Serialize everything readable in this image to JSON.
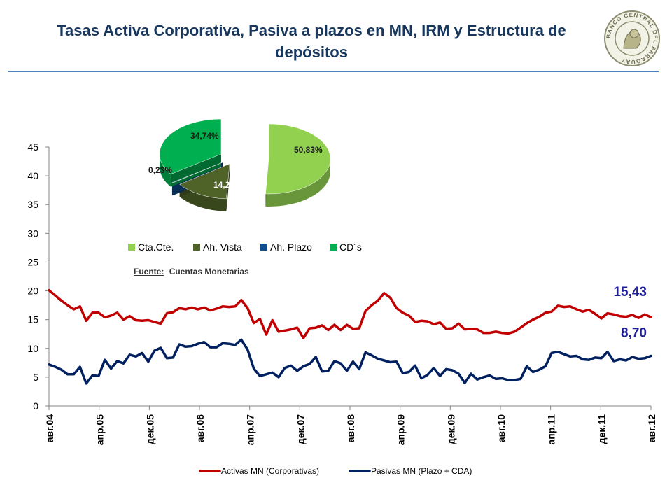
{
  "page": {
    "title": "Tasas Activa Corporativa, Pasiva a plazos en MN, IRM y Estructura de depósitos",
    "seal_text": "BANCO CENTRAL DEL PARAGUAY"
  },
  "chart_data": [
    {
      "type": "line",
      "title": "",
      "xlabel": "",
      "ylabel": "",
      "ylim": [
        0,
        45
      ],
      "yticks": [
        0,
        5,
        10,
        15,
        20,
        25,
        30,
        35,
        40,
        45
      ],
      "x_tick_labels": [
        "авг.04",
        "апр.05",
        "дек.05",
        "авг.06",
        "апр.07",
        "дек.07",
        "авг.08",
        "апр.09",
        "дек.09",
        "авг.10",
        "апр.11",
        "дек.11",
        "авг.12"
      ],
      "x_start": "2004-08",
      "x_end": "2012-08",
      "legend_position": "bottom",
      "grid": false,
      "series": [
        {
          "name": "Activas MN (Corporativas)",
          "color": "#C00000",
          "last_label": "15,43",
          "values": [
            20.1,
            19.2,
            18.3,
            17.5,
            16.8,
            17.3,
            14.8,
            16.2,
            16.2,
            15.4,
            15.7,
            16.2,
            15.0,
            15.6,
            14.9,
            14.8,
            14.9,
            14.6,
            14.3,
            16.1,
            16.3,
            17.0,
            16.8,
            17.1,
            16.8,
            17.1,
            16.6,
            16.9,
            17.3,
            17.2,
            17.3,
            18.4,
            17.0,
            14.4,
            15.1,
            12.4,
            14.9,
            12.9,
            13.1,
            13.3,
            13.6,
            11.8,
            13.5,
            13.6,
            14.0,
            13.2,
            14.1,
            13.2,
            14.1,
            13.4,
            13.5,
            16.5,
            17.5,
            18.3,
            19.6,
            18.8,
            17.0,
            16.2,
            15.7,
            14.6,
            14.8,
            14.7,
            14.2,
            14.5,
            13.4,
            13.5,
            14.3,
            13.3,
            13.4,
            13.3,
            12.7,
            12.7,
            12.9,
            12.7,
            12.6,
            12.9,
            13.6,
            14.4,
            15.0,
            15.5,
            16.2,
            16.4,
            17.4,
            17.2,
            17.3,
            16.8,
            16.4,
            16.7,
            16.0,
            15.2,
            16.1,
            15.9,
            15.6,
            15.5,
            15.8,
            15.3,
            15.9,
            15.43
          ]
        },
        {
          "name": "Pasivas MN (Plazo + CDA)",
          "color": "#002060",
          "last_label": "8,70",
          "values": [
            7.2,
            6.8,
            6.3,
            5.5,
            5.5,
            6.8,
            3.9,
            5.3,
            5.2,
            8.0,
            6.5,
            7.8,
            7.4,
            8.9,
            8.6,
            9.2,
            7.7,
            9.6,
            10.1,
            8.3,
            8.4,
            10.7,
            10.3,
            10.4,
            10.8,
            11.1,
            10.2,
            10.2,
            10.9,
            10.8,
            10.6,
            11.5,
            9.8,
            6.5,
            5.2,
            5.5,
            5.8,
            5.0,
            6.6,
            7.0,
            6.1,
            6.9,
            7.3,
            8.5,
            6.0,
            6.1,
            7.8,
            7.4,
            6.1,
            7.7,
            6.4,
            9.3,
            8.8,
            8.2,
            7.9,
            7.6,
            7.7,
            5.7,
            5.9,
            7.0,
            4.8,
            5.4,
            6.6,
            5.2,
            6.4,
            6.2,
            5.6,
            4.0,
            5.6,
            4.6,
            5.0,
            5.3,
            4.7,
            4.8,
            4.5,
            4.5,
            4.7,
            6.9,
            5.9,
            6.3,
            6.9,
            9.2,
            9.4,
            9.0,
            8.6,
            8.7,
            8.1,
            8.0,
            8.4,
            8.3,
            9.4,
            7.8,
            8.1,
            7.9,
            8.5,
            8.2,
            8.3,
            8.7
          ]
        }
      ]
    },
    {
      "type": "pie",
      "title": "",
      "legend_position": "bottom",
      "slices": [
        {
          "name": "Cta.Cte.",
          "value": 50.83,
          "label": "50,83%",
          "color": "#92D050"
        },
        {
          "name": "Ah. Vista",
          "value": 14.21,
          "label": "14,21%",
          "color": "#4F6228"
        },
        {
          "name": "Ah. Plazo",
          "value": 0.23,
          "label": "0,23%",
          "color": "#0F4D8F"
        },
        {
          "name": "CD´s",
          "value": 34.74,
          "label": "34,74%",
          "color": "#00B050"
        }
      ],
      "source_label": "Fuente:",
      "source_text": "Cuentas Monetarias"
    }
  ]
}
